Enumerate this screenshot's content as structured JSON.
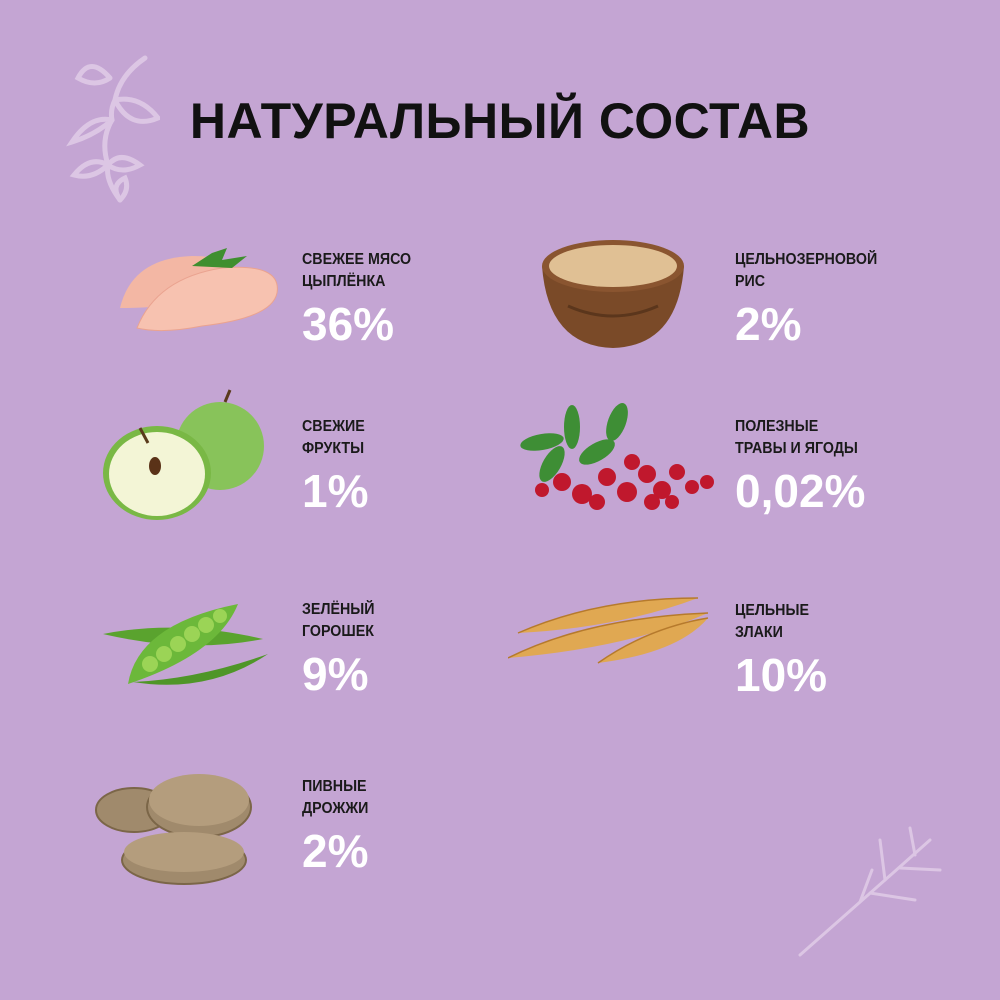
{
  "title": "НАТУРАЛЬНЫЙ СОСТАВ",
  "colors": {
    "background": "#c4a5d3",
    "title": "#111111",
    "percent": "#ffffff",
    "decoration": "#dcc6e4"
  },
  "ingredients": [
    {
      "label": "СВЕЖЕЕ МЯСО\nЦЫПЛЁНКА",
      "percent": "36%",
      "icon": "chicken-breast"
    },
    {
      "label": "ЦЕЛЬНОЗЕРНОВОЙ\nРИС",
      "percent": "2%",
      "icon": "rice-bowl"
    },
    {
      "label": "СВЕЖИЕ\nФРУКТЫ",
      "percent": "1%",
      "icon": "green-apple"
    },
    {
      "label": "ПОЛЕЗНЫЕ\nТРАВЫ И ЯГОДЫ",
      "percent": "0,02%",
      "icon": "cranberries"
    },
    {
      "label": "ЗЕЛЁНЫЙ\nГОРОШЕК",
      "percent": "9%",
      "icon": "green-peas"
    },
    {
      "label": "ЦЕЛЬНЫЕ\nЗЛАКИ",
      "percent": "10%",
      "icon": "wheat"
    },
    {
      "label": "ПИВНЫЕ\nДРОЖЖИ",
      "percent": "2%",
      "icon": "yeast-tablets"
    }
  ]
}
